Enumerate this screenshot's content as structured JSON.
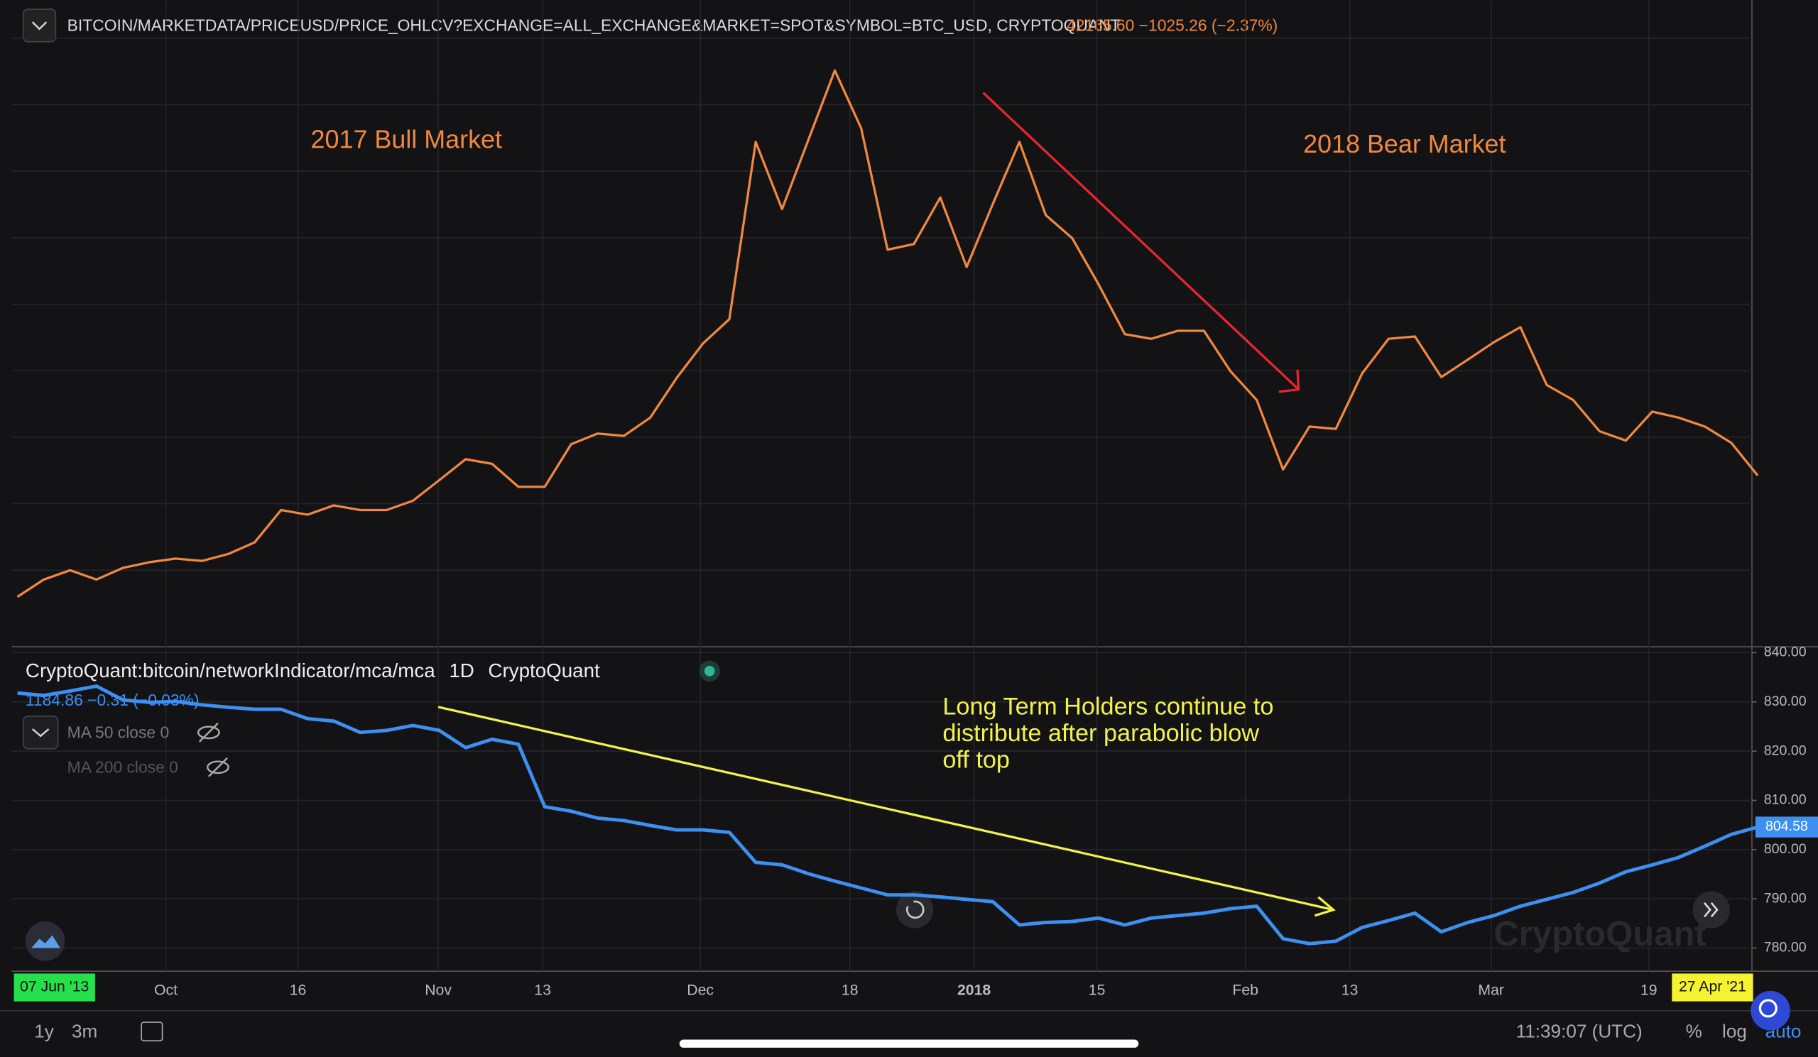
{
  "header": {
    "symbol": "BITCOIN/MARKETDATA/PRICEUSD/PRICE_OHLCV?EXCHANGE=ALL_EXCHANGE&MARKET=SPOT&SYMBOL=BTC_USD, CRYPTOQUANT",
    "quote": "42165.60 −1025.26 (−2.37%)"
  },
  "chart_data": [
    {
      "type": "line",
      "color": "#f0883e",
      "annotations": [
        "2017 Bull Market",
        "2018 Bear Market"
      ],
      "xlim": [
        0,
        66
      ],
      "ylim": [
        1700,
        20800
      ],
      "ygrid": [
        4000,
        6000,
        8000,
        10000,
        12000,
        14000,
        16000,
        18000,
        20000
      ],
      "xticks": [
        {
          "value": 5.63,
          "label": "Oct"
        },
        {
          "value": 10.64,
          "label": "16"
        },
        {
          "value": 15.96,
          "label": "Nov"
        },
        {
          "value": 19.92,
          "label": "13"
        },
        {
          "value": 25.9,
          "label": "Dec"
        },
        {
          "value": 31.57,
          "label": "18"
        },
        {
          "value": 36.28,
          "label": "2018"
        },
        {
          "value": 40.94,
          "label": "15"
        },
        {
          "value": 46.57,
          "label": "Feb"
        },
        {
          "value": 50.53,
          "label": "13"
        },
        {
          "value": 55.89,
          "label": "Mar"
        },
        {
          "value": 61.87,
          "label": "19"
        }
      ],
      "values": [
        3200,
        3720,
        4000,
        3720,
        4070,
        4240,
        4350,
        4280,
        4490,
        4840,
        5810,
        5670,
        5950,
        5810,
        5810,
        6090,
        6710,
        7340,
        7200,
        6510,
        6510,
        7790,
        8110,
        8040,
        8590,
        9780,
        10820,
        11550,
        16880,
        14860,
        16950,
        19030,
        17290,
        13640,
        13810,
        15210,
        13120,
        15030,
        16880,
        14680,
        13990,
        12600,
        11100,
        10960,
        11200,
        11200,
        9990,
        9120,
        7030,
        8320,
        8250,
        9920,
        10960,
        11030,
        9810,
        10330,
        10860,
        11310,
        9570,
        9120,
        8180,
        7900,
        8770,
        8590,
        8320,
        7830,
        6850
      ]
    },
    {
      "type": "line",
      "color": "#3d8ff0",
      "title": "CryptoQuant:bitcoin/networkIndicator/mca/mca",
      "interval": "1D",
      "source": "CryptoQuant",
      "quote": "1184.86 −0.31 (−0.03%)",
      "indicators": [
        "MA 50 close 0",
        "MA 200 close 0"
      ],
      "annotation": [
        "Long Term Holders continue to",
        "distribute after parabolic blow",
        "off top"
      ],
      "watermark": "CryptoQuant",
      "xlim": [
        0,
        66
      ],
      "ylim": [
        775.3,
        841.2
      ],
      "yticks": [
        {
          "value": 780,
          "label": "780.00"
        },
        {
          "value": 790,
          "label": "790.00"
        },
        {
          "value": 800,
          "label": "800.00"
        },
        {
          "value": 810,
          "label": "810.00"
        },
        {
          "value": 820,
          "label": "820.00"
        },
        {
          "value": 830,
          "label": "830.00"
        },
        {
          "value": 840,
          "label": "840.00"
        }
      ],
      "values": [
        831.8,
        831.3,
        832.2,
        833.2,
        830.4,
        829.9,
        830.1,
        829.4,
        828.9,
        828.5,
        828.5,
        826.6,
        826.1,
        823.8,
        824.2,
        825.2,
        824.2,
        820.7,
        822.4,
        821.4,
        808.7,
        807.8,
        806.4,
        805.9,
        804.9,
        804.0,
        804.0,
        803.5,
        797.4,
        796.9,
        795.1,
        793.6,
        792.2,
        790.8,
        790.8,
        790.4,
        789.9,
        789.4,
        784.7,
        785.2,
        785.4,
        786.1,
        784.7,
        786.1,
        786.6,
        787.1,
        788.0,
        788.5,
        781.9,
        780.9,
        781.4,
        784.2,
        785.6,
        787.1,
        783.3,
        785.2,
        786.6,
        788.5,
        789.9,
        791.3,
        793.2,
        795.5,
        796.9,
        798.4,
        800.7,
        803.1,
        804.58
      ]
    }
  ],
  "toolbar": {
    "start_date": "07 Jun '13",
    "end_date": "27 Apr '21",
    "ranges": [
      "1y",
      "3m"
    ],
    "time": "11:39:07 (UTC)",
    "options": [
      "%",
      "log",
      "auto"
    ]
  }
}
